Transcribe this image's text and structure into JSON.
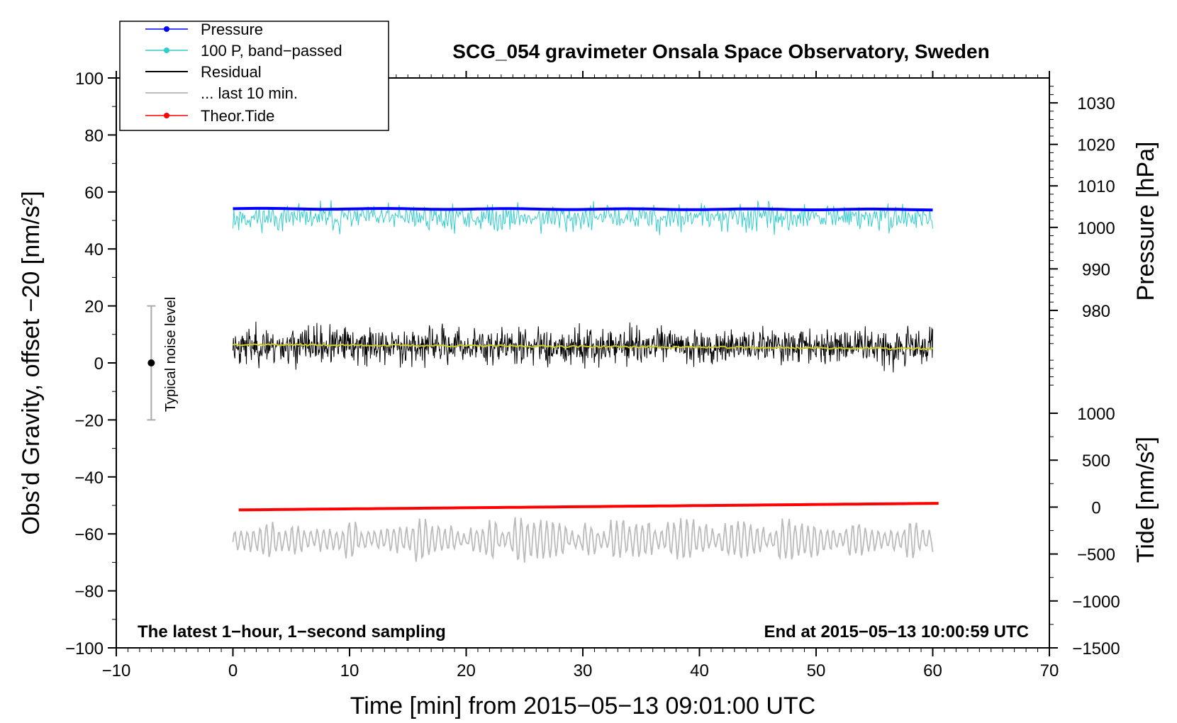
{
  "chart_data": {
    "type": "line",
    "title": "SCG_054 gravimeter Onsala Space Observatory, Sweden",
    "xlabel": "Time [min] from 2015−05−13 09:01:00 UTC",
    "ylabel_left": "Obs’d Gravity, offset −20 [nm/s²]",
    "ylabel_right_top": "Pressure [hPa]",
    "ylabel_right_bottom": "Tide [nm/s²]",
    "xlim": [
      -10,
      70
    ],
    "ylim": [
      -100,
      100
    ],
    "x_ticks": [
      -10,
      0,
      10,
      20,
      30,
      40,
      50,
      60,
      70
    ],
    "x_tick_labels": [
      "−10",
      "0",
      "10",
      "20",
      "30",
      "40",
      "50",
      "60",
      "70"
    ],
    "y_ticks": [
      -100,
      -80,
      -60,
      -40,
      -20,
      0,
      20,
      40,
      60,
      80,
      100
    ],
    "y_tick_labels": [
      "−100",
      "−80",
      "−60",
      "−40",
      "−20",
      "0",
      "20",
      "40",
      "60",
      "80",
      "100"
    ],
    "pressure_axis": {
      "ticks": [
        980,
        990,
        1000,
        1010,
        1020,
        1030
      ],
      "tick_labels": [
        "980",
        "990",
        "1000",
        "1010",
        "1020",
        "1030"
      ],
      "range_hpa": [
        960,
        1036
      ]
    },
    "tide_axis": {
      "ticks": [
        -1500,
        -1000,
        -500,
        0,
        500,
        1000
      ],
      "tick_labels": [
        "−1500",
        "−1000",
        "−500",
        "0",
        "500",
        "1000"
      ],
      "range_nms2": [
        -1500,
        1000
      ]
    },
    "legend": [
      {
        "label": "Pressure",
        "color": "#0000ff",
        "marker": true
      },
      {
        "label": "100 P, band−passed",
        "color": "#33cccc",
        "marker": true
      },
      {
        "label": "Residual",
        "color": "#000000",
        "marker": false
      },
      {
        "label": "... last 10 min.",
        "color": "#bbbbbb",
        "marker": false
      },
      {
        "label": "Theor.Tide",
        "color": "#ff0000",
        "marker": true
      }
    ],
    "annotations": {
      "left": "The latest 1−hour, 1−second sampling",
      "right": "End at 2015−05−13 10:00:59 UTC",
      "noise_label": "Typical noise level"
    },
    "noise_bar": {
      "x": -7,
      "y_center": 0,
      "y_min": -20,
      "y_max": 20
    },
    "series": [
      {
        "name": "Pressure",
        "color": "#0000ff",
        "axis": "pressure_hpa",
        "x_range": [
          0,
          60
        ],
        "start": 1004.5,
        "end": 1004.3,
        "wiggle": 0.1
      },
      {
        "name": "100 P, band−passed",
        "color": "#33cccc",
        "axis": "gravity",
        "x_range": [
          0,
          60
        ],
        "center": 51,
        "amplitude": 5,
        "min": 37,
        "max": 61
      },
      {
        "name": "Residual",
        "color": "#000000",
        "axis": "gravity",
        "x_range": [
          0,
          60
        ],
        "center": 6,
        "amplitude": 6,
        "min": -6,
        "max": 20
      },
      {
        "name": "Residual smoothed",
        "color": "#cccc22",
        "axis": "gravity",
        "x_range": [
          0,
          60
        ],
        "start": 6.5,
        "end": 5.0,
        "wiggle": 0.7
      },
      {
        "name": "Theor.Tide",
        "color": "#ff0000",
        "axis": "tide_nms2",
        "x_range": [
          0.5,
          60.5
        ],
        "start": -30,
        "end": 40
      },
      {
        "name": "... last 10 min.",
        "color": "#bbbbbb",
        "axis": "gravity",
        "x_range": [
          0,
          60
        ],
        "center": -62,
        "amplitude": 6,
        "min": -73,
        "max": -48
      }
    ]
  }
}
